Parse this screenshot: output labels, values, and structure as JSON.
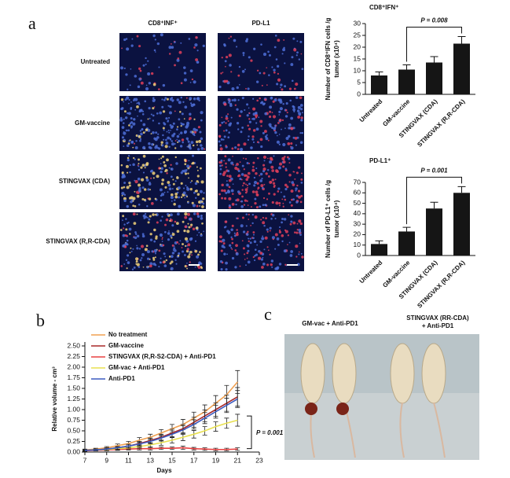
{
  "figure": {
    "panel_labels": [
      "a",
      "b",
      "c"
    ],
    "micrograph": {
      "columns": [
        "CD8⁺INF⁺",
        "PD-L1"
      ],
      "rows": [
        "Untreated",
        "GM-vaccine",
        "STINGVAX (CDA)",
        "STINGVAX (R,R-CDA)"
      ]
    },
    "photo": {
      "labels": [
        [
          "GM-vac + Anti-PD1"
        ],
        [
          "STINGVAX (RR-CDA)",
          "+ Anti-PD1"
        ]
      ]
    }
  },
  "chart_data": [
    {
      "type": "bar",
      "title": "CD8⁺IFN⁺",
      "ylabel": [
        "Number of CD8⁺IFN cells /g",
        "tumor (x10⁴)"
      ],
      "categories": [
        "Untreated",
        "GM-vaccine",
        "STINGVAX (CDA)",
        "STINGVAX (R,R-CDA)"
      ],
      "values": [
        8,
        10.5,
        13.5,
        21.5
      ],
      "errors": [
        1.5,
        2,
        2.5,
        3
      ],
      "color": "#151515",
      "ylim": [
        0,
        30
      ],
      "yticks": [
        0,
        5,
        10,
        15,
        20,
        25,
        30
      ],
      "annotation": "P = 0.008"
    },
    {
      "type": "bar",
      "title": "PD-L1⁺",
      "ylabel": [
        "Number of PD-L1⁺ cells /g",
        "tumor (x10⁴)"
      ],
      "categories": [
        "Untreated",
        "GM-vaccine",
        "STINGVAX (CDA)",
        "STINGVAX (R,R-CDA)"
      ],
      "values": [
        11,
        23,
        45,
        60
      ],
      "errors": [
        3,
        4,
        6,
        6
      ],
      "color": "#151515",
      "ylim": [
        0,
        70
      ],
      "yticks": [
        0,
        10,
        20,
        30,
        40,
        50,
        60,
        70
      ],
      "annotation": "P = 0.001"
    },
    {
      "type": "line",
      "xlabel": "Days",
      "ylabel": "Relative volume - cm³",
      "x": [
        7,
        8,
        9,
        10,
        11,
        12,
        13,
        14,
        15,
        16,
        17,
        18,
        19,
        20,
        21
      ],
      "series": [
        {
          "name": "No treatment",
          "color": "#f0a050",
          "values": [
            0.05,
            0.07,
            0.1,
            0.15,
            0.2,
            0.28,
            0.35,
            0.45,
            0.55,
            0.65,
            0.8,
            0.95,
            1.15,
            1.35,
            1.65
          ],
          "errors": [
            0.02,
            0.02,
            0.03,
            0.04,
            0.05,
            0.06,
            0.07,
            0.08,
            0.1,
            0.12,
            0.14,
            0.16,
            0.18,
            0.22,
            0.27
          ]
        },
        {
          "name": "GM-vaccine",
          "color": "#a82828",
          "values": [
            0.04,
            0.05,
            0.07,
            0.1,
            0.14,
            0.2,
            0.27,
            0.35,
            0.45,
            0.55,
            0.7,
            0.85,
            1.0,
            1.15,
            1.3
          ],
          "errors": [
            0.02,
            0.02,
            0.03,
            0.03,
            0.04,
            0.05,
            0.06,
            0.07,
            0.09,
            0.1,
            0.12,
            0.14,
            0.16,
            0.19,
            0.22
          ]
        },
        {
          "name": "STINGVAX (R,R-S2-CDA) + Anti-PD1",
          "color": "#e84040",
          "values": [
            0.03,
            0.04,
            0.05,
            0.06,
            0.07,
            0.08,
            0.08,
            0.09,
            0.09,
            0.1,
            0.08,
            0.07,
            0.06,
            0.06,
            0.07
          ],
          "errors": [
            0.01,
            0.01,
            0.02,
            0.02,
            0.02,
            0.03,
            0.03,
            0.03,
            0.03,
            0.04,
            0.03,
            0.03,
            0.03,
            0.03,
            0.03
          ]
        },
        {
          "name": "GM-vac + Anti-PD1",
          "color": "#e8e050",
          "values": [
            0.04,
            0.05,
            0.06,
            0.08,
            0.1,
            0.13,
            0.17,
            0.22,
            0.28,
            0.35,
            0.42,
            0.5,
            0.6,
            0.68,
            0.75
          ],
          "errors": [
            0.01,
            0.02,
            0.02,
            0.03,
            0.03,
            0.04,
            0.05,
            0.06,
            0.07,
            0.08,
            0.09,
            0.1,
            0.11,
            0.12,
            0.14
          ]
        },
        {
          "name": "Anti-PD1",
          "color": "#3c5cc0",
          "values": [
            0.04,
            0.05,
            0.07,
            0.1,
            0.14,
            0.19,
            0.25,
            0.33,
            0.42,
            0.52,
            0.65,
            0.8,
            0.95,
            1.1,
            1.25
          ],
          "errors": [
            0.02,
            0.02,
            0.03,
            0.03,
            0.04,
            0.05,
            0.06,
            0.07,
            0.08,
            0.1,
            0.11,
            0.13,
            0.15,
            0.17,
            0.2
          ]
        }
      ],
      "xlim": [
        7,
        23
      ],
      "xticks": [
        7,
        9,
        11,
        13,
        15,
        17,
        19,
        21,
        23
      ],
      "ylim": [
        0,
        2.5
      ],
      "yticks": [
        {
          "value": 0,
          "label": "0.00"
        },
        {
          "value": 0.25,
          "label": "0.25"
        },
        {
          "value": 0.5,
          "label": "0.50"
        },
        {
          "value": 0.75,
          "label": "0.75"
        },
        {
          "value": 1,
          "label": "1.00"
        },
        {
          "value": 1.25,
          "label": "1.25"
        },
        {
          "value": 1.5,
          "label": "1.50"
        },
        {
          "value": 1.75,
          "label": "1.75"
        },
        {
          "value": 2,
          "label": "2.00"
        },
        {
          "value": 2.25,
          "label": "2.25"
        },
        {
          "value": 2.5,
          "label": "2.50"
        }
      ],
      "legend": "upper left",
      "annotation": "P = 0.001"
    }
  ]
}
